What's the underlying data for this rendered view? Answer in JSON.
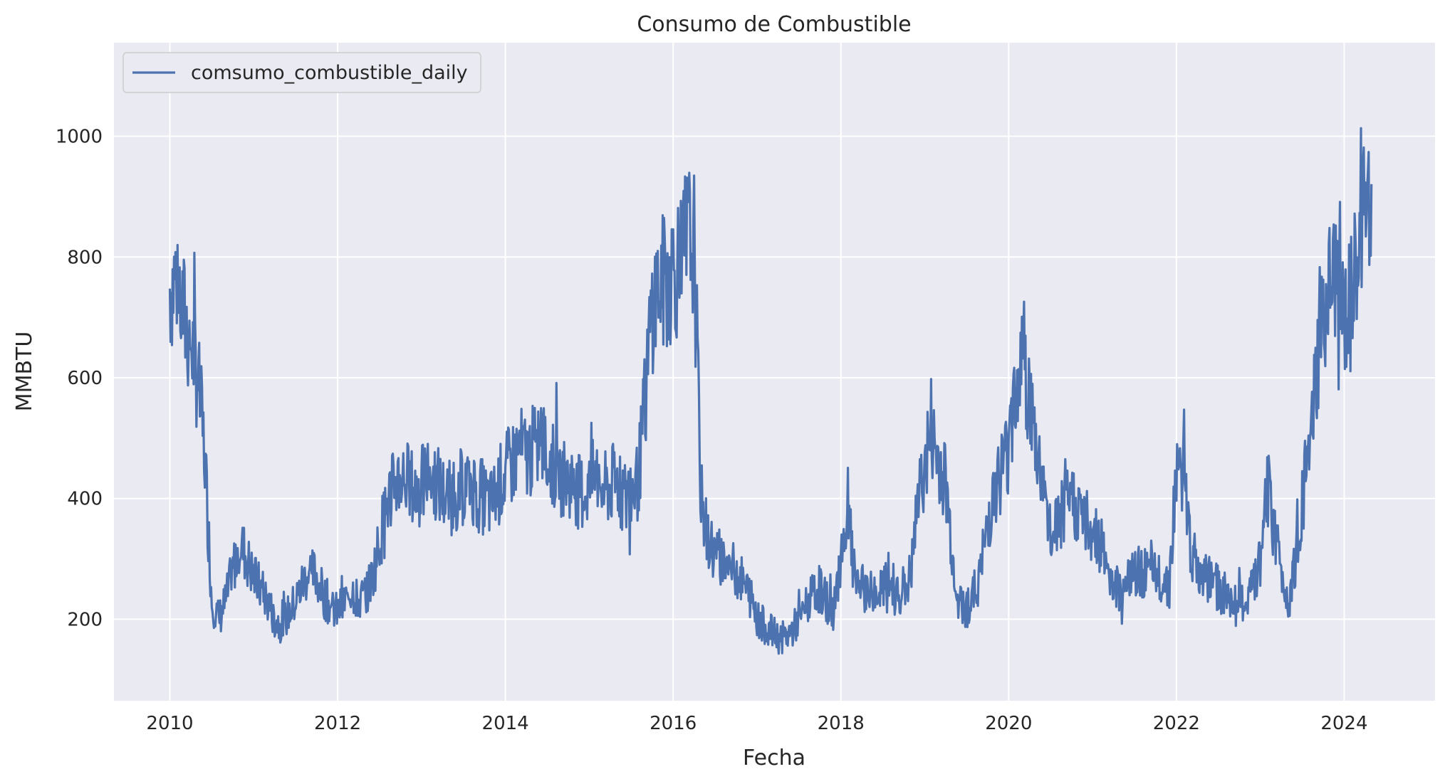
{
  "chart_data": {
    "type": "line",
    "title": "Consumo de Combustible",
    "xlabel": "Fecha",
    "ylabel": "MMBTU",
    "x_range": [
      "2009-05-01",
      "2025-02-01"
    ],
    "ylim": [
      65,
      1155
    ],
    "x_ticks": [
      "2010",
      "2012",
      "2014",
      "2016",
      "2018",
      "2020",
      "2022",
      "2024"
    ],
    "y_ticks": [
      200,
      400,
      600,
      800,
      1000
    ],
    "grid": true,
    "legend": {
      "position": "top-left",
      "entries": [
        "comsumo_combustible_daily"
      ]
    },
    "colors": {
      "series": "#4c72b0",
      "background": "#eaeaf2",
      "grid": "#ffffff"
    },
    "series": [
      {
        "name": "comsumo_combustible_daily",
        "x": [
          "2010-01",
          "2010-02",
          "2010-03",
          "2010-04",
          "2010-05",
          "2010-06",
          "2010-07",
          "2010-08",
          "2010-09",
          "2010-10",
          "2010-11",
          "2010-12",
          "2011-01",
          "2011-02",
          "2011-03",
          "2011-04",
          "2011-05",
          "2011-06",
          "2011-07",
          "2011-08",
          "2011-09",
          "2011-10",
          "2011-11",
          "2011-12",
          "2012-01",
          "2012-02",
          "2012-03",
          "2012-04",
          "2012-05",
          "2012-06",
          "2012-07",
          "2012-08",
          "2012-09",
          "2012-10",
          "2012-11",
          "2012-12",
          "2013-01",
          "2013-02",
          "2013-03",
          "2013-04",
          "2013-05",
          "2013-06",
          "2013-07",
          "2013-08",
          "2013-09",
          "2013-10",
          "2013-11",
          "2013-12",
          "2014-01",
          "2014-02",
          "2014-03",
          "2014-04",
          "2014-05",
          "2014-06",
          "2014-07",
          "2014-08",
          "2014-09",
          "2014-10",
          "2014-11",
          "2014-12",
          "2015-01",
          "2015-02",
          "2015-03",
          "2015-04",
          "2015-05",
          "2015-06",
          "2015-07",
          "2015-08",
          "2015-09",
          "2015-10",
          "2015-11",
          "2015-12",
          "2016-01",
          "2016-02",
          "2016-03",
          "2016-04",
          "2016-05",
          "2016-06",
          "2016-07",
          "2016-08",
          "2016-09",
          "2016-10",
          "2016-11",
          "2016-12",
          "2017-01",
          "2017-02",
          "2017-03",
          "2017-04",
          "2017-05",
          "2017-06",
          "2017-07",
          "2017-08",
          "2017-09",
          "2017-10",
          "2017-11",
          "2017-12",
          "2018-01",
          "2018-02",
          "2018-03",
          "2018-04",
          "2018-05",
          "2018-06",
          "2018-07",
          "2018-08",
          "2018-09",
          "2018-10",
          "2018-11",
          "2018-12",
          "2019-01",
          "2019-02",
          "2019-03",
          "2019-04",
          "2019-05",
          "2019-06",
          "2019-07",
          "2019-08",
          "2019-09",
          "2019-10",
          "2019-11",
          "2019-12",
          "2020-01",
          "2020-02",
          "2020-03",
          "2020-04",
          "2020-05",
          "2020-06",
          "2020-07",
          "2020-08",
          "2020-09",
          "2020-10",
          "2020-11",
          "2020-12",
          "2021-01",
          "2021-02",
          "2021-03",
          "2021-04",
          "2021-05",
          "2021-06",
          "2021-07",
          "2021-08",
          "2021-09",
          "2021-10",
          "2021-11",
          "2021-12",
          "2022-01",
          "2022-02",
          "2022-03",
          "2022-04",
          "2022-05",
          "2022-06",
          "2022-07",
          "2022-08",
          "2022-09",
          "2022-10",
          "2022-11",
          "2022-12",
          "2023-01",
          "2023-02",
          "2023-03",
          "2023-04",
          "2023-05",
          "2023-06",
          "2023-07",
          "2023-08",
          "2023-09",
          "2023-10",
          "2023-11",
          "2023-12",
          "2024-01",
          "2024-02",
          "2024-03",
          "2024-04",
          "2024-05"
        ],
        "values": [
          750,
          770,
          700,
          660,
          600,
          470,
          230,
          200,
          230,
          280,
          330,
          300,
          270,
          250,
          230,
          200,
          190,
          210,
          230,
          260,
          280,
          270,
          240,
          220,
          210,
          230,
          250,
          230,
          240,
          270,
          330,
          390,
          420,
          440,
          430,
          410,
          420,
          440,
          430,
          410,
          400,
          410,
          420,
          430,
          410,
          400,
          390,
          420,
          440,
          460,
          480,
          470,
          480,
          500,
          470,
          450,
          440,
          430,
          420,
          410,
          420,
          440,
          410,
          420,
          430,
          400,
          410,
          430,
          560,
          720,
          750,
          760,
          780,
          790,
          830,
          820,
          400,
          330,
          310,
          300,
          290,
          280,
          260,
          240,
          200,
          190,
          180,
          170,
          170,
          180,
          200,
          220,
          240,
          250,
          230,
          210,
          310,
          380,
          260,
          250,
          250,
          240,
          250,
          260,
          250,
          250,
          270,
          390,
          460,
          500,
          460,
          430,
          300,
          230,
          220,
          240,
          280,
          360,
          420,
          450,
          480,
          600,
          650,
          560,
          480,
          420,
          330,
          360,
          380,
          400,
          380,
          360,
          350,
          330,
          300,
          260,
          250,
          270,
          270,
          280,
          270,
          270,
          270,
          260,
          440,
          450,
          320,
          280,
          270,
          260,
          250,
          240,
          230,
          220,
          230,
          250,
          300,
          420,
          350,
          280,
          230,
          300,
          400,
          470,
          600,
          700,
          740,
          760,
          680,
          720,
          790,
          880,
          870
        ]
      }
    ]
  }
}
